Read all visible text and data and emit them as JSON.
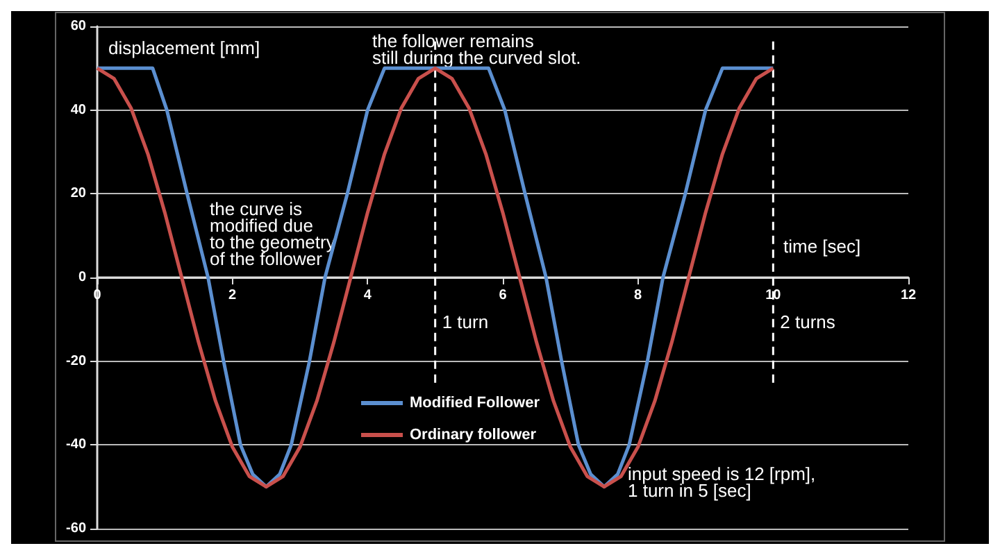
{
  "chart_data": {
    "type": "line",
    "xlabel": "time [sec]",
    "ylabel": "displacement [mm]",
    "xlim": [
      0,
      12
    ],
    "xticks": [
      0,
      2,
      4,
      6,
      8,
      10,
      12
    ],
    "ylim": [
      -60,
      60
    ],
    "yticks": [
      -60,
      -40,
      -20,
      0,
      20,
      40,
      60
    ],
    "grid": "y",
    "legend": "center",
    "marker": "none",
    "line_style": "solid",
    "series": [
      {
        "name": "Modified Follower",
        "color": "#5b8fd0",
        "x": [
          0,
          0.82,
          1.03,
          1.33,
          1.64,
          1.87,
          2.12,
          2.3,
          2.5,
          2.7,
          2.87,
          3.14,
          3.37,
          3.7,
          4.0,
          4.25,
          5.79,
          6.03,
          6.33,
          6.64,
          6.87,
          7.12,
          7.3,
          7.5,
          7.7,
          7.87,
          8.14,
          8.37,
          8.7,
          9.0,
          9.25,
          10
        ],
        "values": [
          50,
          50,
          40,
          20,
          0,
          -20,
          -40,
          -47,
          -50,
          -47,
          -40,
          -20,
          0,
          20,
          40,
          50,
          50,
          40,
          20,
          0,
          -20,
          -40,
          -47,
          -50,
          -47,
          -40,
          -20,
          0,
          20,
          40,
          50,
          50
        ]
      },
      {
        "name": "Ordinary follower",
        "color": "#c9504c",
        "x": [
          0,
          0.25,
          0.5,
          0.75,
          1,
          1.25,
          1.5,
          1.75,
          2,
          2.25,
          2.5,
          2.75,
          3,
          3.25,
          3.5,
          3.75,
          4,
          4.25,
          4.5,
          4.75,
          5,
          5.25,
          5.5,
          5.75,
          6,
          6.25,
          6.5,
          6.75,
          7,
          7.25,
          7.5,
          7.75,
          8,
          8.25,
          8.5,
          8.75,
          9,
          9.25,
          9.5,
          9.75,
          10
        ],
        "values": [
          50,
          47.5,
          40.5,
          29.5,
          15.5,
          0,
          -15.5,
          -29.5,
          -40.5,
          -47.5,
          -50,
          -47.5,
          -40.5,
          -29.5,
          -15.5,
          0,
          15.5,
          29.5,
          40.5,
          47.5,
          50,
          47.5,
          40.5,
          29.5,
          15.5,
          0,
          -15.5,
          -29.5,
          -40.5,
          -47.5,
          -50,
          -47.5,
          -40.5,
          -29.5,
          -15.5,
          0,
          15.5,
          29.5,
          40.5,
          47.5,
          50
        ]
      }
    ],
    "ref_lines": [
      {
        "axis": "x",
        "value": 5,
        "label": "1 turn",
        "color": "#ffffff",
        "line_style": "dashed"
      },
      {
        "axis": "x",
        "value": 10,
        "label": "2 turns",
        "color": "#ffffff",
        "line_style": "dashed"
      }
    ],
    "annotations": [
      "the follower remains\nstill during the curved slot.",
      "the curve is\nmodified due\nto the geometry\nof the follower",
      "input speed is 12 [rpm],\n1 turn in 5 [sec]"
    ]
  }
}
